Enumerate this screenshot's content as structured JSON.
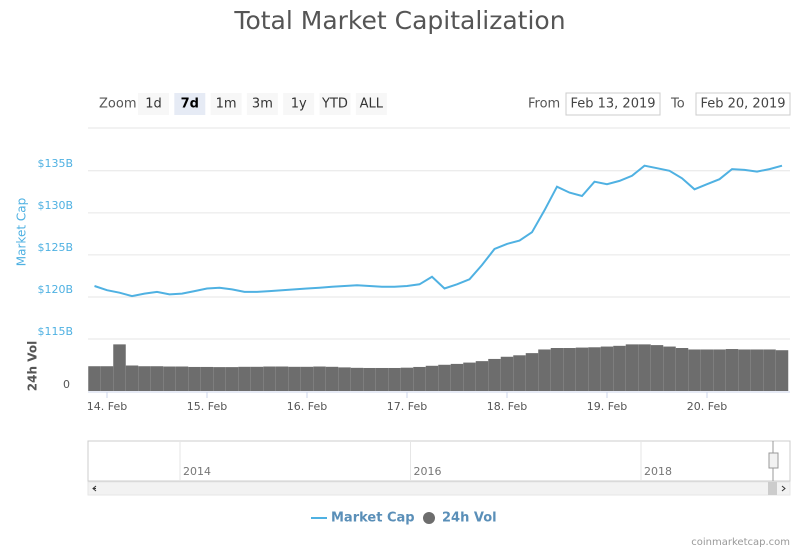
{
  "chart_data": {
    "type": "line",
    "title": "Total Market Capitalization",
    "zoom_label": "Zoom",
    "range_buttons": [
      "1d",
      "7d",
      "1m",
      "3m",
      "1y",
      "YTD",
      "ALL"
    ],
    "range_selected_index": 1,
    "from_label": "From",
    "from_date": "Feb 13, 2019",
    "to_label": "To",
    "to_date": "Feb 20, 2019",
    "x": [
      13.875,
      14,
      14.125,
      14.25,
      14.375,
      14.5,
      14.625,
      14.75,
      14.875,
      15,
      15.125,
      15.25,
      15.375,
      15.5,
      15.625,
      15.75,
      15.875,
      16,
      16.125,
      16.25,
      16.375,
      16.5,
      16.625,
      16.75,
      16.875,
      17,
      17.125,
      17.25,
      17.375,
      17.5,
      17.625,
      17.75,
      17.875,
      18,
      18.125,
      18.25,
      18.375,
      18.5,
      18.625,
      18.75,
      18.875,
      19,
      19.125,
      19.25,
      19.375,
      19.5,
      19.625,
      19.75,
      19.875,
      20,
      20.125,
      20.25,
      20.375,
      20.5,
      20.625,
      20.75
    ],
    "xlim": [
      13.81,
      20.83
    ],
    "xticks": [
      {
        "value": 14,
        "label": "14. Feb"
      },
      {
        "value": 15,
        "label": "15. Feb"
      },
      {
        "value": 16,
        "label": "16. Feb"
      },
      {
        "value": 17,
        "label": "17. Feb"
      },
      {
        "value": 18,
        "label": "18. Feb"
      },
      {
        "value": 19,
        "label": "19. Feb"
      },
      {
        "value": 20,
        "label": "20. Feb"
      }
    ],
    "ylim": [
      115,
      138.3
    ],
    "yticks": [
      {
        "value": 115,
        "label": "$115B"
      },
      {
        "value": 120,
        "label": "$120B"
      },
      {
        "value": 125,
        "label": "$125B"
      },
      {
        "value": 130,
        "label": "$130B"
      },
      {
        "value": 135,
        "label": "$135B"
      }
    ],
    "y2lim": [
      0,
      35
    ],
    "y2ticks": [
      0
    ],
    "grid": true,
    "series": [
      {
        "name": "Market Cap",
        "color": "#4fb1e2",
        "type": "line",
        "values": [
          121.3,
          120.8,
          120.5,
          120.1,
          120.4,
          120.6,
          120.3,
          120.4,
          120.7,
          121.0,
          121.1,
          120.9,
          120.6,
          120.6,
          120.7,
          120.8,
          120.9,
          121.0,
          121.1,
          121.2,
          121.3,
          121.4,
          121.3,
          121.2,
          121.2,
          121.3,
          121.5,
          122.4,
          121.0,
          121.5,
          122.1,
          123.8,
          125.7,
          126.3,
          126.7,
          127.7,
          130.3,
          133.1,
          132.4,
          132.0,
          133.7,
          133.4,
          133.8,
          134.4,
          135.6,
          135.3,
          135.0,
          134.1,
          132.8,
          133.4,
          134.0,
          135.2,
          135.1,
          134.9,
          135.2,
          135.6
        ]
      },
      {
        "name": "24h Vol",
        "color": "#6d6d6d",
        "type": "bar",
        "axis": "y2",
        "values": [
          17,
          17,
          32,
          17.5,
          17,
          17,
          16.8,
          16.8,
          16.5,
          16.5,
          16.4,
          16.4,
          16.6,
          16.6,
          16.8,
          16.8,
          16.6,
          16.6,
          16.8,
          16.6,
          16.2,
          15.9,
          15.8,
          15.8,
          15.8,
          16,
          16.5,
          17.3,
          18,
          18.6,
          19.5,
          20.5,
          22,
          23.5,
          24.5,
          26,
          28.5,
          29.5,
          29.5,
          29.8,
          30,
          30.5,
          31,
          32,
          32,
          31.5,
          30.5,
          29.5,
          28.5,
          28.5,
          28.5,
          28.8,
          28.5,
          28.5,
          28.5,
          28
        ]
      }
    ],
    "navigator_labels": [
      "2014",
      "2016",
      "2018"
    ],
    "credit": "coinmarketcap.com"
  }
}
